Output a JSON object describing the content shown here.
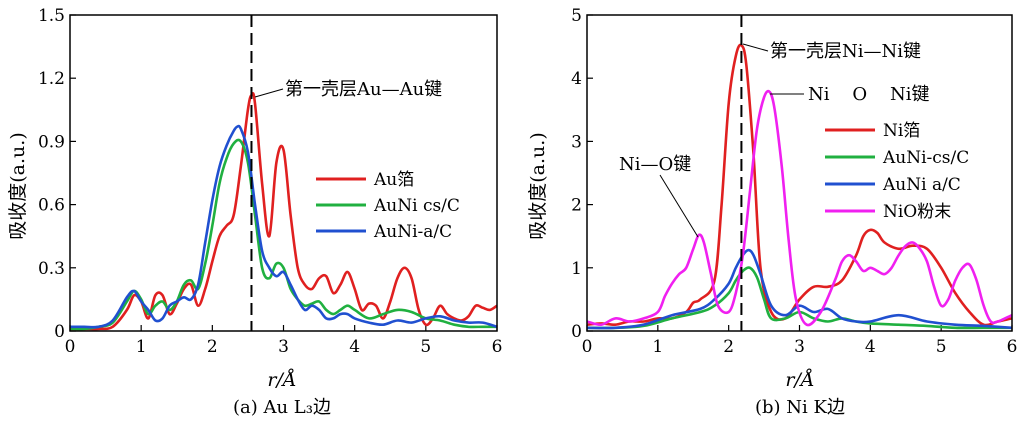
{
  "chart_data": [
    {
      "type": "line",
      "caption": "(a) Au L₃边",
      "xlabel": "r/Å",
      "ylabel": "吸收度(a.u.)",
      "xlim": [
        0,
        6
      ],
      "ylim": [
        0,
        1.5
      ],
      "x_ticks": [
        "0",
        "1",
        "2",
        "3",
        "4",
        "5",
        "6"
      ],
      "y_ticks": [
        "0",
        "0.3",
        "0.6",
        "0.9",
        "1.2",
        "1.5"
      ],
      "legend_position": "right",
      "reference_line_x": 2.55,
      "annotations": [
        {
          "text": "第一壳层Au—Au键",
          "x": 2.55,
          "y": 1.12
        }
      ],
      "series": [
        {
          "name": "Au箔",
          "color": "#e02020",
          "x": [
            0,
            0.2,
            0.4,
            0.6,
            0.8,
            0.9,
            1.0,
            1.1,
            1.2,
            1.3,
            1.4,
            1.5,
            1.6,
            1.7,
            1.8,
            1.9,
            2.0,
            2.1,
            2.2,
            2.3,
            2.4,
            2.5,
            2.55,
            2.6,
            2.7,
            2.8,
            2.9,
            3.0,
            3.1,
            3.2,
            3.3,
            3.4,
            3.5,
            3.6,
            3.7,
            3.8,
            3.9,
            4.0,
            4.1,
            4.2,
            4.3,
            4.4,
            4.5,
            4.6,
            4.7,
            4.8,
            4.9,
            5.0,
            5.1,
            5.2,
            5.3,
            5.4,
            5.5,
            5.6,
            5.7,
            5.8,
            5.9,
            6.0
          ],
          "values": [
            0.01,
            0.01,
            0.01,
            0.02,
            0.1,
            0.17,
            0.14,
            0.06,
            0.17,
            0.17,
            0.08,
            0.13,
            0.2,
            0.22,
            0.12,
            0.2,
            0.33,
            0.45,
            0.5,
            0.55,
            0.78,
            1.05,
            1.12,
            1.08,
            0.7,
            0.45,
            0.8,
            0.86,
            0.55,
            0.3,
            0.22,
            0.2,
            0.25,
            0.26,
            0.18,
            0.22,
            0.28,
            0.2,
            0.1,
            0.13,
            0.12,
            0.06,
            0.14,
            0.25,
            0.3,
            0.25,
            0.1,
            0.03,
            0.06,
            0.12,
            0.08,
            0.06,
            0.05,
            0.07,
            0.12,
            0.11,
            0.1,
            0.12
          ]
        },
        {
          "name": "AuNi cs/C",
          "color": "#20b040",
          "x": [
            0,
            0.2,
            0.4,
            0.6,
            0.8,
            0.9,
            1.0,
            1.1,
            1.2,
            1.3,
            1.4,
            1.5,
            1.6,
            1.7,
            1.8,
            1.9,
            2.0,
            2.1,
            2.2,
            2.3,
            2.4,
            2.5,
            2.6,
            2.7,
            2.8,
            2.9,
            3.0,
            3.1,
            3.2,
            3.3,
            3.4,
            3.5,
            3.6,
            3.7,
            3.8,
            3.9,
            4.0,
            4.2,
            4.4,
            4.6,
            4.8,
            5.0,
            5.2,
            5.4,
            5.6,
            5.8,
            6.0
          ],
          "values": [
            0.01,
            0.01,
            0.02,
            0.04,
            0.14,
            0.19,
            0.15,
            0.08,
            0.12,
            0.14,
            0.1,
            0.14,
            0.22,
            0.24,
            0.2,
            0.32,
            0.5,
            0.7,
            0.82,
            0.89,
            0.9,
            0.8,
            0.55,
            0.3,
            0.25,
            0.32,
            0.3,
            0.2,
            0.15,
            0.12,
            0.13,
            0.14,
            0.1,
            0.08,
            0.1,
            0.12,
            0.1,
            0.06,
            0.08,
            0.1,
            0.09,
            0.06,
            0.05,
            0.03,
            0.02,
            0.02,
            0.02
          ]
        },
        {
          "name": "AuNi-a/C",
          "color": "#2050d0",
          "x": [
            0,
            0.2,
            0.4,
            0.6,
            0.8,
            0.9,
            1.0,
            1.1,
            1.2,
            1.3,
            1.4,
            1.5,
            1.6,
            1.7,
            1.8,
            1.9,
            2.0,
            2.1,
            2.2,
            2.3,
            2.35,
            2.4,
            2.5,
            2.6,
            2.7,
            2.8,
            2.9,
            3.0,
            3.1,
            3.2,
            3.3,
            3.4,
            3.5,
            3.6,
            3.7,
            3.8,
            3.9,
            4.0,
            4.2,
            4.4,
            4.6,
            4.8,
            5.0,
            5.2,
            5.4,
            5.6,
            5.8,
            6.0
          ],
          "values": [
            0.02,
            0.02,
            0.02,
            0.05,
            0.16,
            0.19,
            0.14,
            0.1,
            0.05,
            0.06,
            0.12,
            0.14,
            0.16,
            0.15,
            0.22,
            0.42,
            0.62,
            0.78,
            0.88,
            0.95,
            0.97,
            0.96,
            0.85,
            0.6,
            0.38,
            0.3,
            0.26,
            0.28,
            0.22,
            0.15,
            0.1,
            0.12,
            0.1,
            0.06,
            0.06,
            0.08,
            0.08,
            0.06,
            0.04,
            0.03,
            0.05,
            0.04,
            0.06,
            0.07,
            0.05,
            0.04,
            0.04,
            0.02
          ]
        }
      ]
    },
    {
      "type": "line",
      "caption": "(b) Ni K边",
      "xlabel": "r/Å",
      "ylabel": "吸收度(a.u.)",
      "xlim": [
        0,
        6
      ],
      "ylim": [
        0,
        5
      ],
      "x_ticks": [
        "0",
        "1",
        "2",
        "3",
        "4",
        "5",
        "6"
      ],
      "y_ticks": [
        "0",
        "1",
        "2",
        "3",
        "4",
        "5"
      ],
      "legend_position": "right",
      "reference_line_x": 2.18,
      "annotations": [
        {
          "text": "第一壳层Ni—Ni键",
          "x": 2.18,
          "y": 4.5
        },
        {
          "text": "Ni    O    Ni键",
          "x": 2.58,
          "y": 3.78
        },
        {
          "text": "Ni—O键",
          "x": 1.58,
          "y": 1.52
        }
      ],
      "series": [
        {
          "name": "Ni箔",
          "color": "#e02020",
          "x": [
            0,
            0.2,
            0.4,
            0.6,
            0.8,
            1.0,
            1.2,
            1.4,
            1.5,
            1.6,
            1.8,
            1.9,
            2.0,
            2.1,
            2.18,
            2.25,
            2.35,
            2.45,
            2.6,
            2.8,
            3.0,
            3.2,
            3.4,
            3.6,
            3.8,
            3.9,
            4.0,
            4.1,
            4.2,
            4.4,
            4.6,
            4.8,
            5.0,
            5.2,
            5.4,
            5.6,
            5.8,
            6.0
          ],
          "values": [
            0.1,
            0.12,
            0.1,
            0.15,
            0.15,
            0.2,
            0.2,
            0.3,
            0.45,
            0.5,
            0.8,
            2.0,
            3.6,
            4.35,
            4.52,
            4.2,
            2.8,
            1.0,
            0.3,
            0.2,
            0.5,
            0.7,
            0.7,
            0.8,
            1.2,
            1.5,
            1.6,
            1.55,
            1.4,
            1.3,
            1.35,
            1.3,
            1.0,
            0.6,
            0.3,
            0.1,
            0.15,
            0.2
          ]
        },
        {
          "name": "AuNi-cs/C",
          "color": "#20b040",
          "x": [
            0,
            0.4,
            0.8,
            1.2,
            1.6,
            1.8,
            2.0,
            2.1,
            2.2,
            2.3,
            2.4,
            2.5,
            2.6,
            2.8,
            3.0,
            3.2,
            3.4,
            3.6,
            3.8,
            4.0,
            4.4,
            4.8,
            5.2,
            5.6,
            6.0
          ],
          "values": [
            0.05,
            0.05,
            0.08,
            0.2,
            0.3,
            0.4,
            0.6,
            0.8,
            0.95,
            1.0,
            0.85,
            0.5,
            0.2,
            0.2,
            0.3,
            0.2,
            0.15,
            0.2,
            0.15,
            0.12,
            0.1,
            0.08,
            0.05,
            0.05,
            0.05
          ]
        },
        {
          "name": "AuNi a/C",
          "color": "#2050d0",
          "x": [
            0,
            0.4,
            0.8,
            1.2,
            1.6,
            1.8,
            2.0,
            2.1,
            2.2,
            2.28,
            2.35,
            2.45,
            2.6,
            2.8,
            3.0,
            3.2,
            3.4,
            3.6,
            3.8,
            4.0,
            4.4,
            4.8,
            5.2,
            5.6,
            6.0
          ],
          "values": [
            0.05,
            0.05,
            0.1,
            0.25,
            0.35,
            0.5,
            0.75,
            1.0,
            1.2,
            1.28,
            1.2,
            0.9,
            0.4,
            0.25,
            0.4,
            0.3,
            0.35,
            0.2,
            0.15,
            0.15,
            0.25,
            0.15,
            0.1,
            0.08,
            0.05
          ]
        },
        {
          "name": "NiO粉末",
          "color": "#f020f0",
          "x": [
            0,
            0.2,
            0.4,
            0.6,
            0.8,
            1.0,
            1.1,
            1.2,
            1.3,
            1.4,
            1.5,
            1.58,
            1.65,
            1.75,
            1.85,
            2.0,
            2.1,
            2.2,
            2.3,
            2.4,
            2.5,
            2.58,
            2.65,
            2.75,
            2.85,
            2.95,
            3.1,
            3.3,
            3.5,
            3.6,
            3.7,
            3.8,
            3.9,
            4.0,
            4.1,
            4.2,
            4.3,
            4.4,
            4.5,
            4.6,
            4.7,
            4.8,
            4.9,
            5.0,
            5.1,
            5.2,
            5.3,
            5.4,
            5.5,
            5.6,
            5.7,
            5.8,
            5.9,
            6.0
          ],
          "values": [
            0.15,
            0.1,
            0.2,
            0.15,
            0.2,
            0.3,
            0.55,
            0.75,
            0.9,
            1.0,
            1.3,
            1.52,
            1.4,
            0.9,
            0.4,
            0.3,
            0.6,
            1.2,
            2.2,
            3.2,
            3.7,
            3.78,
            3.5,
            2.6,
            1.4,
            0.5,
            0.1,
            0.3,
            0.8,
            1.1,
            1.2,
            1.1,
            0.95,
            1.0,
            0.95,
            0.9,
            1.0,
            1.2,
            1.35,
            1.4,
            1.3,
            1.1,
            0.7,
            0.4,
            0.5,
            0.8,
            1.0,
            1.05,
            0.8,
            0.4,
            0.15,
            0.15,
            0.2,
            0.25
          ]
        }
      ]
    }
  ]
}
